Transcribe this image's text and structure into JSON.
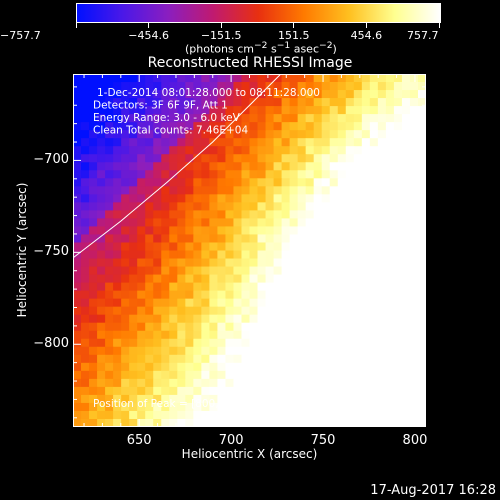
{
  "colorbar": {
    "tick_labels": [
      "−757.7",
      "−454.6",
      "−151.5",
      "151.5",
      "454.6",
      "757.7"
    ],
    "units_html": "(photons cm<sup>−2</sup> s<sup>−1</sup> asec<sup>−2</sup>)",
    "min": -757.7,
    "max": 757.7,
    "colors": [
      "#0010ff",
      "#4a18e8",
      "#8a1ec0",
      "#c01a70",
      "#e83010",
      "#ff7a00",
      "#ffc020",
      "#ffff90",
      "#ffffff"
    ]
  },
  "annotation": {
    "lines": [
      "1-Dec-2014 08:01:28.000 to 08:11:28.000",
      "Detectors: 3F 6F 9F, Att 1",
      "Energy Range: 3.0 - 6.0 keV",
      "Clean    Total counts: 7.46E+04"
    ],
    "peak": "Position of Peak = [800,-748]"
  },
  "footer": {
    "timestamp": "17-Aug-2017 16:28"
  },
  "chart_data": {
    "type": "heatmap",
    "title": "Reconstructed RHESSI Image",
    "xlabel": "Heliocentric X (arcsec)",
    "ylabel": "Heliocentric Y (arcsec)",
    "xlim": [
      614,
      806
    ],
    "ylim": [
      -845,
      -653
    ],
    "x_ticks": [
      650,
      700,
      750,
      800
    ],
    "y_ticks": [
      -700,
      -750,
      -800
    ],
    "x_tick_labels": [
      "650",
      "700",
      "750",
      "800"
    ],
    "y_tick_labels": [
      "−700",
      "−750",
      "−800"
    ],
    "peak": [
      800,
      -748
    ],
    "limb_curve": [
      [
        614,
        -753
      ],
      [
        640,
        -733
      ],
      [
        665,
        -712
      ],
      [
        690,
        -690
      ],
      [
        712,
        -668
      ],
      [
        727,
        -653
      ]
    ],
    "colormap": "RHESSI std_gamma_ii (blue-purple-red-orange-yellow-white)"
  }
}
